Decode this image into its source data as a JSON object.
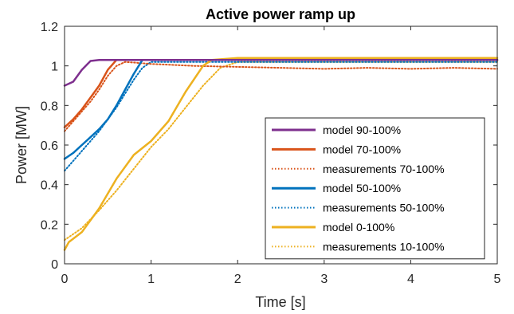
{
  "chart_data": {
    "type": "line",
    "title": "Active power ramp up",
    "xlabel": "Time [s]",
    "ylabel": "Power [MW]",
    "xlim": [
      0,
      5
    ],
    "ylim": [
      0,
      1.2
    ],
    "xticks": [
      0,
      1,
      2,
      3,
      4,
      5
    ],
    "xtick_labels": [
      "0",
      "1",
      "2",
      "3",
      "4",
      "5"
    ],
    "yticks": [
      0,
      0.2,
      0.4,
      0.6,
      0.8,
      1,
      1.2
    ],
    "ytick_labels": [
      "0",
      "0.2",
      "0.4",
      "0.6",
      "0.8",
      "1",
      "1.2"
    ],
    "grid": false,
    "legend_position": "bottom-right",
    "series": [
      {
        "name": "model 90-100%",
        "color": "#7E2F8E",
        "style": "solid",
        "x": [
          0,
          0.1,
          0.2,
          0.3,
          0.4,
          5
        ],
        "y": [
          0.9,
          0.92,
          0.98,
          1.025,
          1.03,
          1.03
        ]
      },
      {
        "name": "model 70-100%",
        "color": "#D95319",
        "style": "solid",
        "x": [
          0,
          0.1,
          0.2,
          0.3,
          0.4,
          0.5,
          0.6,
          0.7,
          5
        ],
        "y": [
          0.69,
          0.73,
          0.78,
          0.84,
          0.9,
          0.98,
          1.03,
          1.03,
          1.03
        ]
      },
      {
        "name": "measurements 70-100%",
        "color": "#D95319",
        "style": "dotted",
        "x": [
          0,
          0.1,
          0.2,
          0.3,
          0.4,
          0.5,
          0.6,
          0.7,
          1.0,
          1.5,
          2.0,
          2.5,
          3.0,
          3.5,
          4.0,
          4.5,
          5.0
        ],
        "y": [
          0.67,
          0.72,
          0.77,
          0.82,
          0.88,
          0.95,
          1.0,
          1.02,
          1.01,
          1.0,
          0.995,
          0.99,
          0.985,
          0.99,
          0.985,
          0.99,
          0.985
        ]
      },
      {
        "name": "model 50-100%",
        "color": "#0072BD",
        "style": "solid",
        "x": [
          0,
          0.1,
          0.2,
          0.3,
          0.4,
          0.5,
          0.6,
          0.7,
          0.8,
          0.9,
          5
        ],
        "y": [
          0.53,
          0.56,
          0.6,
          0.64,
          0.68,
          0.73,
          0.8,
          0.88,
          0.96,
          1.03,
          1.03
        ]
      },
      {
        "name": "measurements 50-100%",
        "color": "#0072BD",
        "style": "dotted",
        "x": [
          0,
          0.1,
          0.2,
          0.3,
          0.4,
          0.5,
          0.6,
          0.7,
          0.8,
          0.9,
          1.0,
          1.5,
          2.0,
          3.0,
          4.0,
          5.0
        ],
        "y": [
          0.47,
          0.52,
          0.57,
          0.62,
          0.67,
          0.73,
          0.79,
          0.86,
          0.93,
          0.99,
          1.02,
          1.02,
          1.02,
          1.02,
          1.02,
          1.02
        ]
      },
      {
        "name": "model 0-100%",
        "color": "#EDB120",
        "style": "solid",
        "x": [
          0,
          0.05,
          0.2,
          0.4,
          0.6,
          0.8,
          1.0,
          1.2,
          1.4,
          1.6,
          1.7,
          2.0,
          5
        ],
        "y": [
          0.07,
          0.11,
          0.16,
          0.28,
          0.43,
          0.55,
          0.62,
          0.72,
          0.87,
          1.0,
          1.03,
          1.04,
          1.04
        ]
      },
      {
        "name": "measurements 10-100%",
        "color": "#EDB120",
        "style": "dotted",
        "x": [
          0,
          0.2,
          0.4,
          0.6,
          0.8,
          1.0,
          1.2,
          1.4,
          1.6,
          1.8,
          2.0,
          2.5,
          3.0,
          4.0,
          5.0
        ],
        "y": [
          0.12,
          0.18,
          0.27,
          0.37,
          0.48,
          0.59,
          0.68,
          0.79,
          0.9,
          0.99,
          1.02,
          1.02,
          1.02,
          1.02,
          1.02
        ]
      }
    ]
  }
}
